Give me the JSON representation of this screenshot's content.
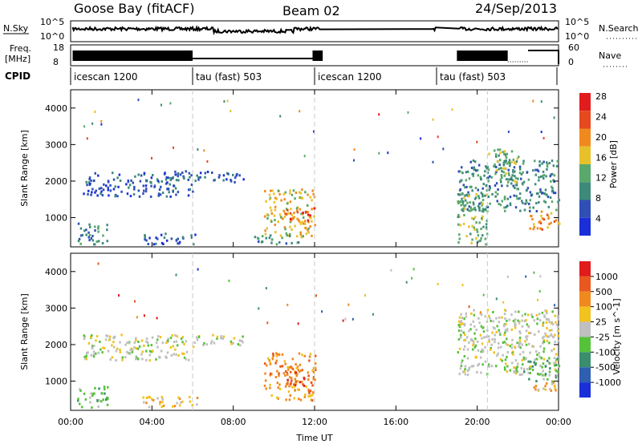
{
  "header": {
    "station": "Goose Bay (fitACF)",
    "beam": "Beam 02",
    "date": "24/Sep/2013"
  },
  "strip_labels": {
    "nsky": "N.Sky",
    "nsearch": "N.Search",
    "freq": "Freq.",
    "freq_unit": "[MHz]",
    "nave": "Nave",
    "cpid": "CPID",
    "nsky_top": "10^5",
    "nsky_bottom": "10^0",
    "freq_top": "18",
    "freq_bottom": "8",
    "nave_top": "60",
    "nave_bottom": "0"
  },
  "cpid_segments": [
    {
      "start": 0.0,
      "end": 6.0,
      "label": "icescan 1200"
    },
    {
      "start": 6.0,
      "end": 12.0,
      "label": "tau (fast) 503"
    },
    {
      "start": 12.0,
      "end": 18.0,
      "label": "icescan 1200"
    },
    {
      "start": 18.0,
      "end": 24.0,
      "label": "tau (fast) 503"
    }
  ],
  "chart_data": [
    {
      "type": "heatmap",
      "name": "power",
      "ylabel": "Slant Range [km]",
      "colorbar_label": "Power [dB]",
      "xlim": [
        0,
        24
      ],
      "ylim": [
        200,
        4500
      ],
      "y_ticks": [
        1000,
        2000,
        3000,
        4000
      ],
      "colorbar_ticks": [
        "4",
        "8",
        "12",
        "16",
        "20",
        "24",
        "28"
      ],
      "colors": [
        "#1a2fd8",
        "#2f4fb6",
        "#3e8a7a",
        "#5aa86b",
        "#e8c12a",
        "#f08a1e",
        "#e6491f",
        "#e21c1c"
      ],
      "regions": [
        {
          "t0": 0.6,
          "t1": 6.0,
          "r0": 1600,
          "r1": 2300,
          "level": 1
        },
        {
          "t0": 0.3,
          "t1": 1.8,
          "r0": 300,
          "r1": 900,
          "level": 2
        },
        {
          "t0": 3.5,
          "t1": 6.2,
          "r0": 300,
          "r1": 600,
          "level": 1
        },
        {
          "t0": 6.0,
          "t1": 8.5,
          "r0": 2000,
          "r1": 2300,
          "level": 1
        },
        {
          "t0": 9.5,
          "t1": 12.0,
          "r0": 500,
          "r1": 1800,
          "level": 4
        },
        {
          "t0": 10.5,
          "t1": 12.0,
          "r0": 900,
          "r1": 1300,
          "level": 6
        },
        {
          "t0": 9.0,
          "t1": 11.5,
          "r0": 300,
          "r1": 550,
          "level": 2
        },
        {
          "t0": 19.0,
          "t1": 24.0,
          "r0": 1200,
          "r1": 2600,
          "level": 2
        },
        {
          "t0": 20.5,
          "t1": 22.0,
          "r0": 2000,
          "r1": 2900,
          "level": 3
        },
        {
          "t0": 22.5,
          "t1": 24.0,
          "r0": 700,
          "r1": 1200,
          "level": 5
        },
        {
          "t0": 19.0,
          "t1": 20.5,
          "r0": 300,
          "r1": 1700,
          "level": 3
        }
      ]
    },
    {
      "type": "heatmap",
      "name": "velocity",
      "ylabel": "Slant Range [km]",
      "colorbar_label": "Velocity [m s^-1]",
      "xlim": [
        0,
        24
      ],
      "ylim": [
        200,
        4500
      ],
      "y_ticks": [
        1000,
        2000,
        3000,
        4000
      ],
      "x_ticks": [
        "00:00",
        "04:00",
        "08:00",
        "12:00",
        "16:00",
        "20:00",
        "00:00"
      ],
      "xlabel": "Time UT",
      "colorbar_ticks": [
        "1000",
        "500",
        "100",
        "25",
        "-25",
        "-100",
        "-500",
        "-1000"
      ],
      "colors": [
        "#1a2fd8",
        "#2f5fb0",
        "#3a8e6e",
        "#56c23a",
        "#bfbfbf",
        "#f2c21e",
        "#f0891e",
        "#e8581e",
        "#e01c1c"
      ],
      "regions": [
        {
          "t0": 0.6,
          "t1": 6.0,
          "r0": 1600,
          "r1": 2300,
          "level": 4
        },
        {
          "t0": 0.3,
          "t1": 1.8,
          "r0": 300,
          "r1": 900,
          "level": 3
        },
        {
          "t0": 3.5,
          "t1": 6.2,
          "r0": 300,
          "r1": 600,
          "level": 5
        },
        {
          "t0": 6.0,
          "t1": 8.5,
          "r0": 2000,
          "r1": 2300,
          "level": 4
        },
        {
          "t0": 9.5,
          "t1": 12.0,
          "r0": 500,
          "r1": 1800,
          "level": 6
        },
        {
          "t0": 10.5,
          "t1": 12.0,
          "r0": 900,
          "r1": 1300,
          "level": 7
        },
        {
          "t0": 19.0,
          "t1": 24.0,
          "r0": 1200,
          "r1": 3000,
          "level": 4
        },
        {
          "t0": 22.0,
          "t1": 24.0,
          "r0": 1000,
          "r1": 1700,
          "level": 3
        },
        {
          "t0": 22.5,
          "t1": 24.0,
          "r0": 700,
          "r1": 1000,
          "level": 5
        }
      ]
    }
  ]
}
